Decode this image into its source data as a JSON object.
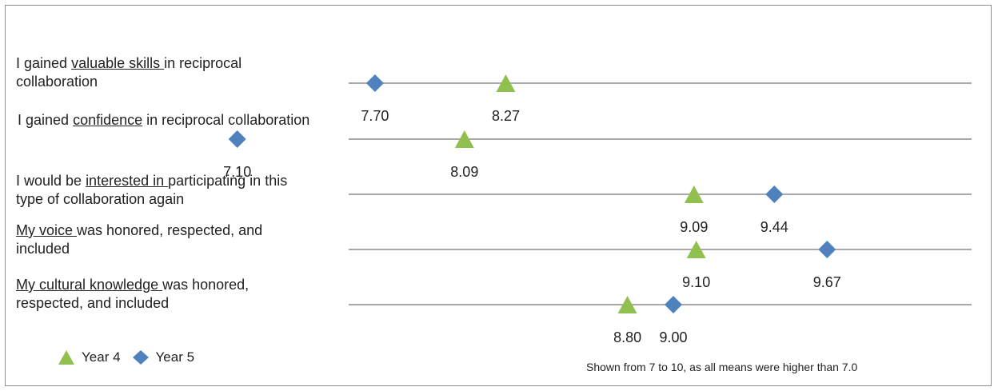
{
  "chart_data": {
    "type": "scatter",
    "xlim": [
      7,
      10
    ],
    "note": "Shown from 7 to 10, as all means were higher than 7.0",
    "categories": [
      {
        "pre": "I gained ",
        "u": "valuable skills ",
        "post": "in reciprocal collaboration"
      },
      {
        "pre": "I gained ",
        "u": "confidence",
        "post": " in reciprocal collaboration"
      },
      {
        "pre": "I would be ",
        "u": "interested in ",
        "post": "participating in this type of collaboration again"
      },
      {
        "pre": "",
        "u": "My voice ",
        "post": "was honored, respected, and included"
      },
      {
        "pre": "",
        "u": "My cultural knowledge ",
        "post": "was honored, respected, and included"
      }
    ],
    "series": [
      {
        "name": "Year 4",
        "marker": "triangle",
        "color": "#92c050",
        "values": [
          8.27,
          8.09,
          9.09,
          9.1,
          8.8
        ],
        "labels": [
          "8.27",
          "8.09",
          "9.09",
          "9.10",
          "8.80"
        ]
      },
      {
        "name": "Year 5",
        "marker": "diamond",
        "color": "#4f81bd",
        "values": [
          7.7,
          7.1,
          9.44,
          9.67,
          9.0
        ],
        "labels": [
          "7.70",
          "7.10",
          "9.44",
          "9.67",
          "9.00"
        ]
      }
    ]
  }
}
